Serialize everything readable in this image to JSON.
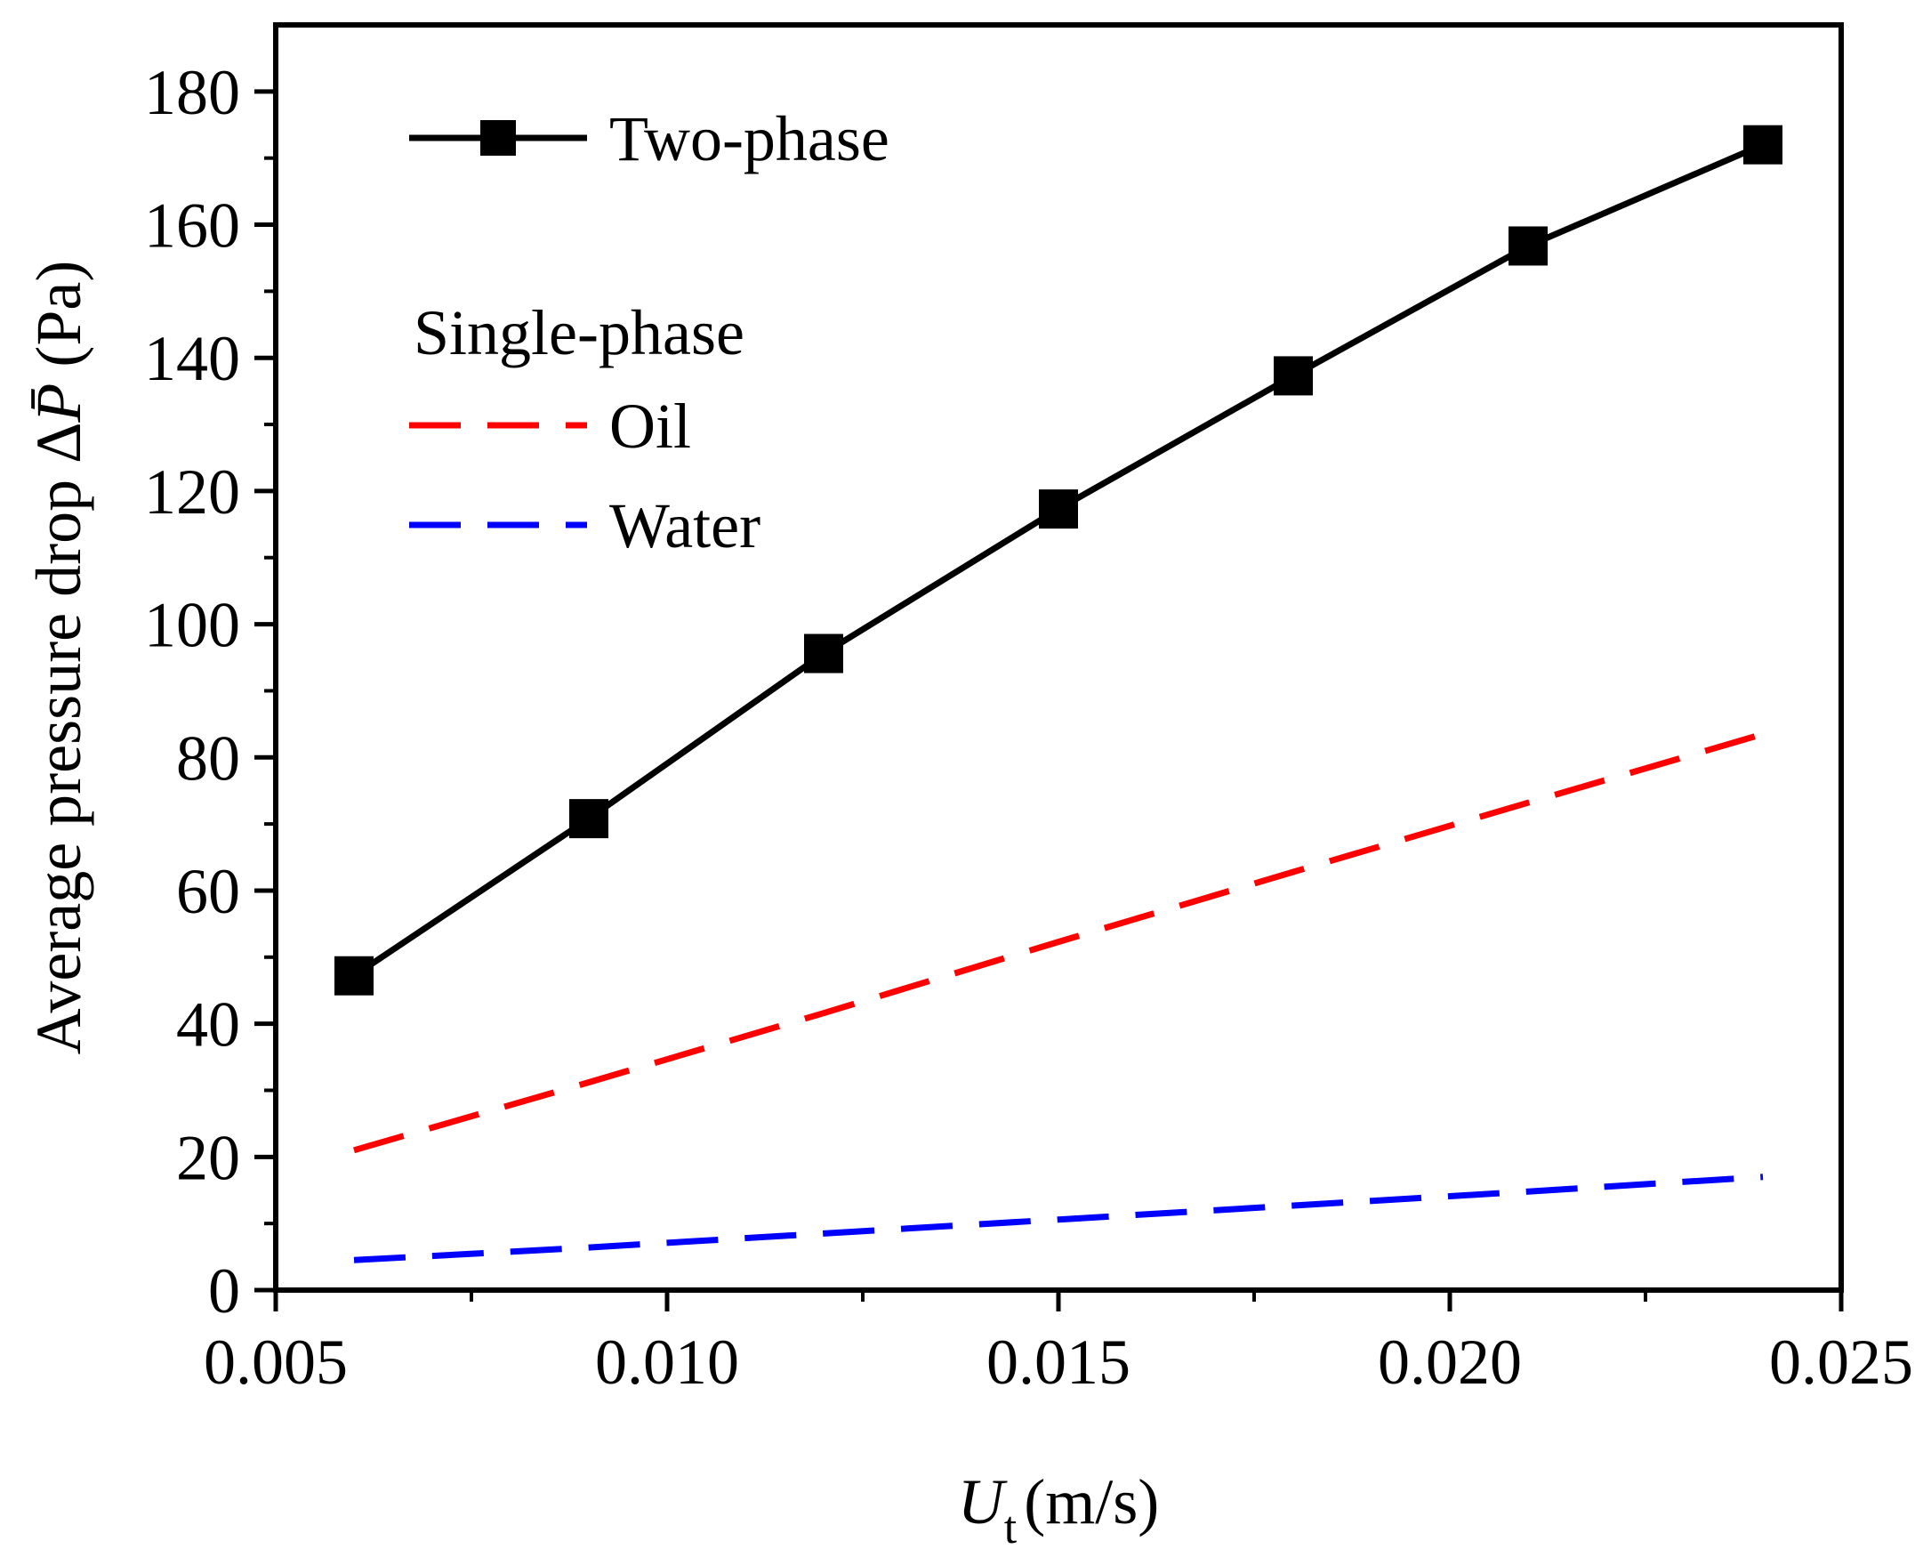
{
  "chart_data": {
    "type": "line",
    "title": "",
    "xlabel": {
      "symbol": "U",
      "subscript": "t",
      "unit": "(m/s)"
    },
    "ylabel": {
      "prefix": "Average pressure drop Δ",
      "symbol": "P̄",
      "unit": " (Pa)"
    },
    "xlim": [
      0.005,
      0.025
    ],
    "ylim": [
      0,
      190
    ],
    "x_ticks": [
      0.005,
      0.01,
      0.015,
      0.02,
      0.025
    ],
    "x_tick_labels": [
      "0.005",
      "0.010",
      "0.015",
      "0.020",
      "0.025"
    ],
    "y_ticks": [
      0,
      20,
      40,
      60,
      80,
      100,
      120,
      140,
      160,
      180
    ],
    "y_tick_labels": [
      "0",
      "20",
      "40",
      "60",
      "80",
      "100",
      "120",
      "140",
      "160",
      "180"
    ],
    "grid": false,
    "legend_position": "top-left",
    "legend_group_title": "Single-phase",
    "series": [
      {
        "name": "Two-phase",
        "style": "solid",
        "marker": "square",
        "color": "#000000",
        "x": [
          0.006,
          0.009,
          0.012,
          0.015,
          0.018,
          0.021,
          0.024
        ],
        "y": [
          47.2,
          70.8,
          95.6,
          117.3,
          137.3,
          156.8,
          172.0
        ]
      },
      {
        "name": "Oil",
        "style": "dashed",
        "marker": "none",
        "color": "#ff0000",
        "x": [
          0.006,
          0.009,
          0.012,
          0.015,
          0.018,
          0.021,
          0.024
        ],
        "y": [
          21.0,
          31.2,
          41.6,
          52.3,
          62.8,
          73.2,
          83.5
        ]
      },
      {
        "name": "Water",
        "style": "dashed",
        "marker": "none",
        "color": "#0000ff",
        "x": [
          0.006,
          0.009,
          0.012,
          0.015,
          0.018,
          0.021,
          0.024
        ],
        "y": [
          4.5,
          6.4,
          8.5,
          10.6,
          12.7,
          14.8,
          17.0
        ]
      }
    ]
  }
}
